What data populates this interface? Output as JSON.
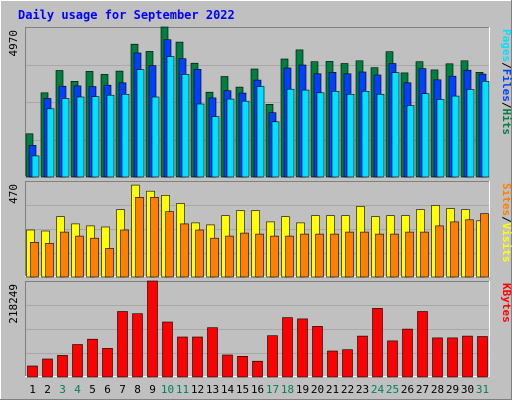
{
  "colors": {
    "frame_bg": "#c0c0c0",
    "hits": "#008040",
    "files": "#0040ff",
    "pages": "#00e0ff",
    "visits": "#ffff00",
    "sites": "#ff8000",
    "kbytes": "#ff0000",
    "weekend_label": "#00805c",
    "title": "#0000ff"
  },
  "chart_data": [
    {
      "type": "bar",
      "panel": "hits-files-pages",
      "title": "Daily usage for September 2022",
      "ylabel_max": "4970",
      "ylim": [
        0,
        4970
      ],
      "legend_parts": [
        "Pages",
        "/",
        "Files",
        "/",
        "Hits"
      ],
      "legend_position": "right",
      "categories": [
        "1",
        "2",
        "3",
        "4",
        "5",
        "6",
        "7",
        "8",
        "9",
        "10",
        "11",
        "12",
        "13",
        "14",
        "15",
        "16",
        "17",
        "18",
        "19",
        "20",
        "21",
        "22",
        "23",
        "24",
        "25",
        "26",
        "27",
        "28",
        "29",
        "30",
        "31"
      ],
      "series": [
        {
          "name": "Hits",
          "values": [
            1430,
            2790,
            3530,
            3170,
            3500,
            3400,
            3510,
            4400,
            4160,
            4970,
            4470,
            3770,
            2810,
            3330,
            2980,
            3580,
            2410,
            3910,
            4210,
            3820,
            3830,
            3760,
            3850,
            3620,
            4150,
            3450,
            3820,
            3550,
            3750,
            3850,
            3470
          ]
        },
        {
          "name": "Files",
          "values": [
            1050,
            2600,
            3010,
            3020,
            3000,
            3040,
            3120,
            4110,
            3690,
            4550,
            3920,
            3570,
            2620,
            2860,
            2780,
            3210,
            2130,
            3610,
            3710,
            3420,
            3470,
            3420,
            3480,
            3380,
            3760,
            3120,
            3590,
            3220,
            3340,
            3540,
            3410
          ]
        },
        {
          "name": "Pages",
          "values": [
            700,
            2260,
            2600,
            2650,
            2660,
            2710,
            2740,
            3560,
            2650,
            3990,
            3400,
            2420,
            2000,
            2580,
            2510,
            3000,
            1830,
            2910,
            2880,
            2790,
            2840,
            2740,
            2840,
            2740,
            3460,
            2370,
            2760,
            2570,
            2680,
            2900,
            3170
          ]
        }
      ]
    },
    {
      "type": "bar",
      "panel": "visits-sites",
      "ylabel_max": "470",
      "ylim": [
        0,
        470
      ],
      "legend_parts": [
        "Sites",
        "/",
        "Visits"
      ],
      "legend_position": "right",
      "categories": [
        "1",
        "2",
        "3",
        "4",
        "5",
        "6",
        "7",
        "8",
        "9",
        "10",
        "11",
        "12",
        "13",
        "14",
        "15",
        "16",
        "17",
        "18",
        "19",
        "20",
        "21",
        "22",
        "23",
        "24",
        "25",
        "26",
        "27",
        "28",
        "29",
        "30",
        "31"
      ],
      "series": [
        {
          "name": "Visits",
          "values": [
            230,
            225,
            295,
            260,
            250,
            245,
            330,
            450,
            420,
            400,
            360,
            265,
            255,
            300,
            325,
            325,
            270,
            295,
            265,
            300,
            300,
            300,
            345,
            295,
            300,
            300,
            330,
            350,
            335,
            330,
            275
          ]
        },
        {
          "name": "Sites",
          "values": [
            170,
            165,
            220,
            200,
            190,
            140,
            230,
            390,
            390,
            320,
            260,
            230,
            190,
            200,
            215,
            210,
            200,
            200,
            210,
            210,
            210,
            220,
            220,
            210,
            210,
            220,
            220,
            250,
            270,
            280,
            310
          ]
        }
      ]
    },
    {
      "type": "bar",
      "panel": "kbytes",
      "ylabel_max": "218249",
      "ylim": [
        0,
        218249
      ],
      "legend_parts": [
        "KBytes"
      ],
      "legend_position": "right",
      "categories": [
        "1",
        "2",
        "3",
        "4",
        "5",
        "6",
        "7",
        "8",
        "9",
        "10",
        "11",
        "12",
        "13",
        "14",
        "15",
        "16",
        "17",
        "18",
        "19",
        "20",
        "21",
        "22",
        "23",
        "24",
        "25",
        "26",
        "27",
        "28",
        "29",
        "30",
        "31"
      ],
      "series": [
        {
          "name": "KBytes",
          "values": [
            25000,
            41000,
            49000,
            74000,
            86000,
            65000,
            149000,
            144000,
            218249,
            125000,
            91000,
            91000,
            112000,
            50000,
            47000,
            36000,
            94000,
            135000,
            132000,
            115000,
            59000,
            62000,
            93000,
            156000,
            82000,
            109000,
            149000,
            89000,
            89000,
            93000,
            92000
          ]
        }
      ]
    }
  ]
}
